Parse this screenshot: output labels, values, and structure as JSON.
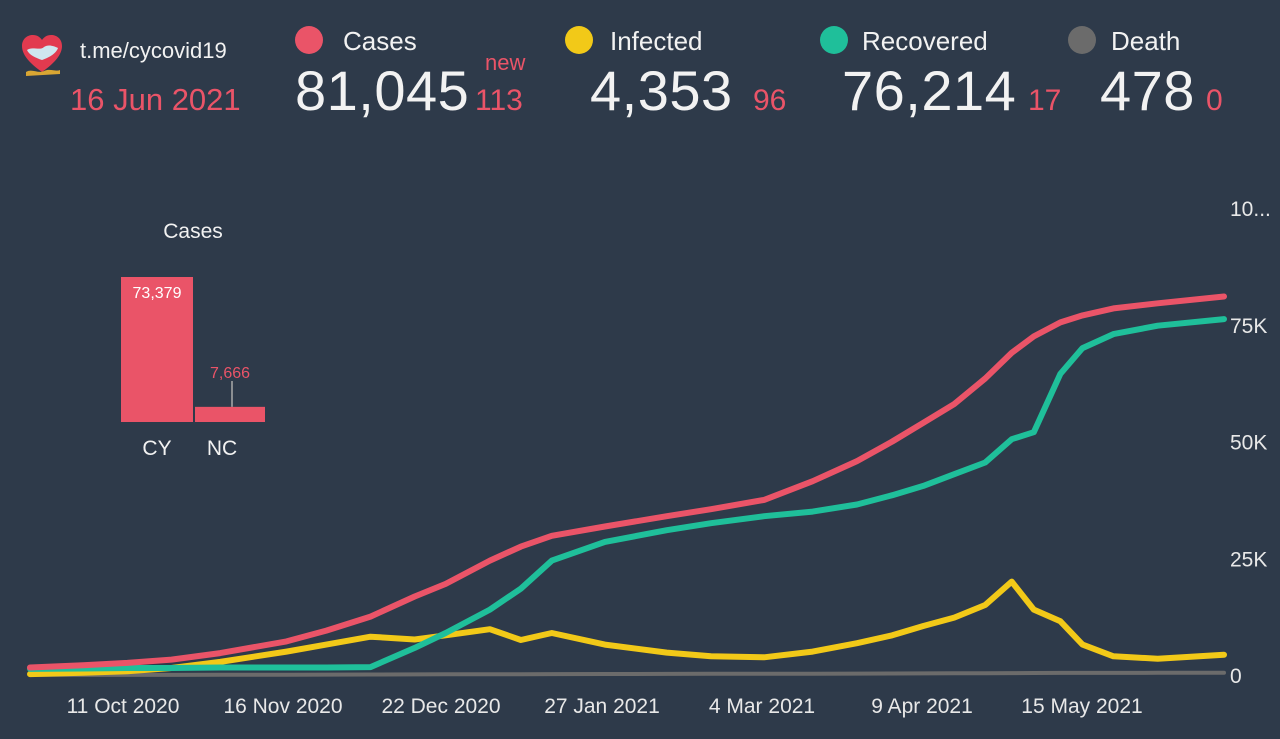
{
  "header": {
    "source": "t.me/cycovid19",
    "date": "16 Jun 2021",
    "new_label": "new",
    "stats": [
      {
        "key": "cases",
        "label": "Cases",
        "value": "81,045",
        "delta": "113",
        "color": "#ea5468"
      },
      {
        "key": "infected",
        "label": "Infected",
        "value": "4,353",
        "delta": "96",
        "color": "#f2c918"
      },
      {
        "key": "recovered",
        "label": "Recovered",
        "value": "76,214",
        "delta": "17",
        "color": "#1fbf9a"
      },
      {
        "key": "death",
        "label": "Death",
        "value": "478",
        "delta": "0",
        "color": "#6b6b6b"
      }
    ]
  },
  "chart_data": [
    {
      "type": "bar",
      "title": "Cases",
      "categories": [
        "CY",
        "NC"
      ],
      "values": [
        73379,
        7666
      ],
      "data_labels": [
        "73,379",
        "7,666"
      ],
      "color": "#ea5468"
    },
    {
      "type": "line",
      "x_ticks": [
        "11 Oct 2020",
        "16 Nov 2020",
        "22 Dec 2020",
        "27 Jan 2021",
        "4 Mar 2021",
        "9 Apr 2021",
        "15 May 2021"
      ],
      "y_ticks": [
        "0",
        "25K",
        "50K",
        "75K",
        "10..."
      ],
      "ylim": [
        0,
        100000
      ],
      "y_axis_position": "right",
      "grid": false,
      "x": [
        "2020-09-19",
        "2020-10-01",
        "2020-10-11",
        "2020-10-21",
        "2020-11-01",
        "2020-11-16",
        "2020-11-25",
        "2020-12-05",
        "2020-12-15",
        "2020-12-22",
        "2021-01-01",
        "2021-01-08",
        "2021-01-15",
        "2021-01-27",
        "2021-02-10",
        "2021-02-20",
        "2021-03-04",
        "2021-03-15",
        "2021-03-25",
        "2021-04-02",
        "2021-04-09",
        "2021-04-16",
        "2021-04-23",
        "2021-04-29",
        "2021-05-04",
        "2021-05-10",
        "2021-05-15",
        "2021-05-22",
        "2021-06-01",
        "2021-06-16"
      ],
      "series": [
        {
          "name": "Cases",
          "color": "#ea5468",
          "values": [
            1600,
            2100,
            2600,
            3300,
            4700,
            7200,
            9500,
            12500,
            16800,
            19500,
            24500,
            27500,
            29800,
            31800,
            34000,
            35500,
            37500,
            41500,
            45800,
            50000,
            54000,
            58000,
            63500,
            69000,
            72500,
            75500,
            77000,
            78500,
            79600,
            81045
          ]
        },
        {
          "name": "Recovered",
          "color": "#1fbf9a",
          "values": [
            1300,
            1400,
            1500,
            1500,
            1600,
            1600,
            1600,
            1700,
            5800,
            9000,
            14000,
            18500,
            24500,
            28500,
            31000,
            32500,
            34000,
            35000,
            36500,
            38500,
            40500,
            43000,
            45500,
            50500,
            52000,
            64500,
            70000,
            73000,
            74800,
            76214
          ]
        },
        {
          "name": "Infected",
          "color": "#f2c918",
          "values": [
            200,
            500,
            800,
            1500,
            2800,
            5000,
            6500,
            8200,
            7600,
            8500,
            9800,
            7500,
            9000,
            6500,
            4800,
            4000,
            3800,
            5000,
            6800,
            8500,
            10500,
            12300,
            15000,
            20000,
            14000,
            11500,
            6500,
            4000,
            3500,
            4353
          ]
        },
        {
          "name": "Death",
          "color": "#6b6b6b",
          "values": [
            20,
            20,
            20,
            20,
            40,
            60,
            80,
            100,
            120,
            140,
            160,
            180,
            200,
            220,
            240,
            250,
            260,
            280,
            300,
            320,
            340,
            360,
            380,
            400,
            420,
            440,
            450,
            460,
            470,
            478
          ]
        }
      ]
    }
  ]
}
